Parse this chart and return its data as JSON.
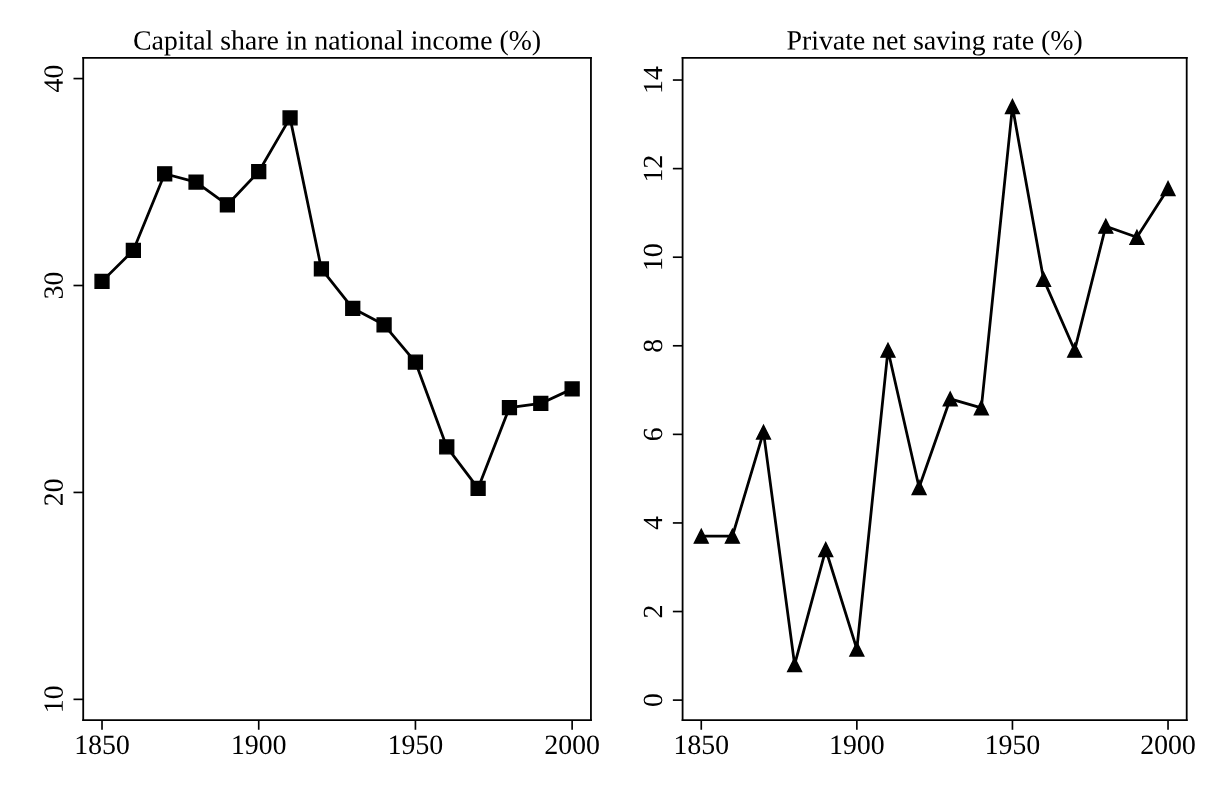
{
  "chart_data": [
    {
      "type": "line",
      "title": "Capital share in national income (%)",
      "x": [
        1850,
        1860,
        1870,
        1880,
        1890,
        1900,
        1910,
        1920,
        1930,
        1940,
        1950,
        1960,
        1970,
        1980,
        1990,
        2000
      ],
      "series": [
        {
          "color": "#000000",
          "values": [
            30.2,
            31.7,
            35.4,
            35.0,
            33.9,
            35.5,
            38.1,
            30.8,
            28.9,
            28.1,
            26.3,
            22.2,
            20.2,
            24.1,
            24.3,
            25.0
          ]
        }
      ],
      "marker": "square",
      "line_style": "solid",
      "grid": false,
      "legend": false,
      "xlim": [
        1844,
        2006
      ],
      "xticks": [
        1850,
        1900,
        1950,
        2000
      ],
      "ylim": [
        9,
        41
      ],
      "yticks": [
        10,
        20,
        30,
        40
      ]
    },
    {
      "type": "line",
      "title": "Private net saving rate (%)",
      "x": [
        1850,
        1860,
        1870,
        1880,
        1890,
        1900,
        1910,
        1920,
        1930,
        1940,
        1950,
        1960,
        1970,
        1980,
        1990,
        2000
      ],
      "series": [
        {
          "color": "#000000",
          "values": [
            3.7,
            3.7,
            6.05,
            0.8,
            3.4,
            1.15,
            7.9,
            4.8,
            6.8,
            6.6,
            13.4,
            9.5,
            7.9,
            10.7,
            10.45,
            11.55
          ]
        }
      ],
      "marker": "triangle",
      "line_style": "solid",
      "grid": false,
      "legend": false,
      "xlim": [
        1844,
        2006
      ],
      "xticks": [
        1850,
        1900,
        1950,
        2000
      ],
      "ylim": [
        -0.45,
        14.5
      ],
      "yticks": [
        0,
        2,
        4,
        6,
        8,
        10,
        12,
        14
      ]
    }
  ]
}
